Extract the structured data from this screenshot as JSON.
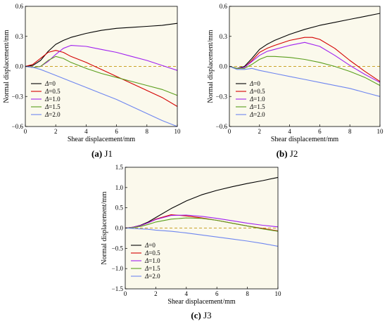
{
  "chart_data": [
    {
      "type": "line",
      "caption_letter": "(a)",
      "caption_text": "J1",
      "xlabel": "Shear displacement/mm",
      "ylabel": "Normal displacement/mm",
      "xlim": [
        0,
        10
      ],
      "ylim": [
        -0.6,
        0.6
      ],
      "xticks": [
        0,
        2,
        4,
        6,
        8,
        10
      ],
      "yticks": [
        -0.6,
        -0.3,
        0.0,
        0.3,
        0.6
      ],
      "ytick_labels": [
        "−0.6",
        "−0.3",
        "0.0",
        "0.3",
        "0.6"
      ],
      "reference_line_y": 0,
      "legend_position": "bottom-left",
      "series": [
        {
          "name": "Δ=0",
          "color": "#000000",
          "x": [
            0,
            0.5,
            1,
            1.5,
            2,
            2.5,
            3,
            4,
            5,
            6,
            7,
            8,
            9,
            10
          ],
          "y": [
            0,
            0.01,
            0.06,
            0.15,
            0.22,
            0.26,
            0.29,
            0.33,
            0.36,
            0.38,
            0.39,
            0.4,
            0.41,
            0.43
          ]
        },
        {
          "name": "Δ=0.5",
          "color": "#d40000",
          "x": [
            0,
            0.5,
            1,
            1.5,
            2,
            2.5,
            3,
            4,
            5,
            6,
            7,
            8,
            9,
            10
          ],
          "y": [
            0,
            0.02,
            0.08,
            0.14,
            0.16,
            0.14,
            0.1,
            0.04,
            -0.03,
            -0.1,
            -0.17,
            -0.24,
            -0.31,
            -0.4
          ]
        },
        {
          "name": "Δ=1.0",
          "color": "#a020f0",
          "x": [
            0,
            0.5,
            1,
            1.5,
            2,
            2.5,
            3,
            4,
            5,
            6,
            7,
            8,
            9,
            10
          ],
          "y": [
            0,
            -0.01,
            0.0,
            0.05,
            0.12,
            0.18,
            0.21,
            0.2,
            0.17,
            0.14,
            0.1,
            0.06,
            0.01,
            -0.04
          ]
        },
        {
          "name": "Δ=1.5",
          "color": "#5a9e1c",
          "x": [
            0,
            0.5,
            1,
            1.5,
            2,
            2.5,
            3,
            4,
            5,
            6,
            7,
            8,
            9,
            10
          ],
          "y": [
            0,
            -0.01,
            0.0,
            0.06,
            0.1,
            0.08,
            0.04,
            -0.02,
            -0.07,
            -0.11,
            -0.15,
            -0.19,
            -0.23,
            -0.29
          ]
        },
        {
          "name": "Δ=2.0",
          "color": "#6e86f0",
          "x": [
            0,
            0.5,
            1,
            1.5,
            2,
            3,
            4,
            5,
            6,
            7,
            8,
            9,
            10
          ],
          "y": [
            0,
            -0.01,
            -0.03,
            -0.06,
            -0.09,
            -0.15,
            -0.21,
            -0.27,
            -0.33,
            -0.4,
            -0.47,
            -0.54,
            -0.6
          ]
        }
      ]
    },
    {
      "type": "line",
      "caption_letter": "(b)",
      "caption_text": "J2",
      "xlabel": "Shear displacement/mm",
      "ylabel": "Normal displacement/mm",
      "xlim": [
        0,
        10
      ],
      "ylim": [
        -0.6,
        0.6
      ],
      "xticks": [
        0,
        2,
        4,
        6,
        8,
        10
      ],
      "yticks": [
        -0.6,
        -0.3,
        0.0,
        0.3,
        0.6
      ],
      "ytick_labels": [
        "−0.6",
        "−0.3",
        "0.0",
        "0.3",
        "0.6"
      ],
      "reference_line_y": 0,
      "legend_position": "bottom-left",
      "series": [
        {
          "name": "Δ=0",
          "color": "#000000",
          "x": [
            0,
            0.5,
            1,
            1.5,
            2,
            2.5,
            3,
            4,
            5,
            6,
            7,
            8,
            9,
            10
          ],
          "y": [
            0,
            -0.02,
            0.0,
            0.08,
            0.17,
            0.22,
            0.26,
            0.32,
            0.37,
            0.41,
            0.44,
            0.47,
            0.5,
            0.53
          ]
        },
        {
          "name": "Δ=0.5",
          "color": "#d40000",
          "x": [
            0,
            0.5,
            1,
            1.5,
            2,
            2.5,
            3,
            4,
            5,
            5.5,
            6,
            7,
            8,
            9,
            10
          ],
          "y": [
            0,
            -0.02,
            -0.01,
            0.06,
            0.14,
            0.18,
            0.21,
            0.26,
            0.29,
            0.29,
            0.27,
            0.18,
            0.06,
            -0.05,
            -0.15
          ]
        },
        {
          "name": "Δ=1.0",
          "color": "#a020f0",
          "x": [
            0,
            0.5,
            1,
            1.5,
            2,
            2.5,
            3,
            4,
            5,
            6,
            7,
            8,
            9,
            10
          ],
          "y": [
            0,
            -0.02,
            -0.01,
            0.05,
            0.11,
            0.15,
            0.17,
            0.21,
            0.24,
            0.2,
            0.11,
            0.01,
            -0.08,
            -0.16
          ]
        },
        {
          "name": "Δ=1.5",
          "color": "#5a9e1c",
          "x": [
            0,
            0.5,
            1,
            1.5,
            2,
            2.5,
            3,
            4,
            5,
            6,
            7,
            8,
            9,
            10
          ],
          "y": [
            0,
            -0.02,
            -0.02,
            0.02,
            0.07,
            0.1,
            0.1,
            0.09,
            0.07,
            0.04,
            0.0,
            -0.05,
            -0.11,
            -0.19
          ]
        },
        {
          "name": "Δ=2.0",
          "color": "#6e86f0",
          "x": [
            0,
            0.5,
            1,
            1.5,
            2,
            3,
            4,
            5,
            6,
            7,
            8,
            9,
            10
          ],
          "y": [
            0,
            -0.03,
            -0.03,
            -0.02,
            -0.04,
            -0.07,
            -0.1,
            -0.13,
            -0.16,
            -0.19,
            -0.22,
            -0.26,
            -0.3
          ]
        }
      ]
    },
    {
      "type": "line",
      "caption_letter": "(c)",
      "caption_text": "J3",
      "xlabel": "Shear displacement/mm",
      "ylabel": "Normal displacement/mm",
      "xlim": [
        0,
        10
      ],
      "ylim": [
        -1.5,
        1.5
      ],
      "xticks": [
        0,
        2,
        4,
        6,
        8,
        10
      ],
      "yticks": [
        -1.5,
        -1.0,
        -0.5,
        0.0,
        0.5,
        1.0,
        1.5
      ],
      "ytick_labels": [
        "−1.5",
        "−1.0",
        "−0.5",
        "0.0",
        "0.5",
        "1.0",
        "1.5"
      ],
      "reference_line_y": 0,
      "legend_position": "bottom-left",
      "series": [
        {
          "name": "Δ=0",
          "color": "#000000",
          "x": [
            0,
            0.5,
            1,
            1.5,
            2,
            3,
            4,
            5,
            6,
            7,
            8,
            9,
            10
          ],
          "y": [
            0,
            0.02,
            0.07,
            0.15,
            0.26,
            0.48,
            0.67,
            0.82,
            0.93,
            1.02,
            1.1,
            1.17,
            1.25
          ]
        },
        {
          "name": "Δ=0.5",
          "color": "#d40000",
          "x": [
            0,
            0.5,
            1,
            1.5,
            2,
            3,
            4,
            5,
            6,
            7,
            8,
            9,
            10
          ],
          "y": [
            0,
            0.02,
            0.06,
            0.13,
            0.22,
            0.33,
            0.3,
            0.25,
            0.19,
            0.12,
            0.05,
            -0.01,
            -0.07
          ]
        },
        {
          "name": "Δ=1.0",
          "color": "#a020f0",
          "x": [
            0,
            0.5,
            1,
            1.5,
            2,
            3,
            4,
            5,
            6,
            7,
            8,
            9,
            10
          ],
          "y": [
            0,
            0.02,
            0.06,
            0.13,
            0.21,
            0.31,
            0.32,
            0.29,
            0.24,
            0.18,
            0.12,
            0.07,
            0.03
          ]
        },
        {
          "name": "Δ=1.5",
          "color": "#5a9e1c",
          "x": [
            0,
            0.5,
            1,
            1.5,
            2,
            3,
            4,
            5,
            6,
            7,
            8,
            9,
            10
          ],
          "y": [
            0,
            0.01,
            0.04,
            0.09,
            0.15,
            0.22,
            0.25,
            0.24,
            0.19,
            0.12,
            0.05,
            -0.02,
            -0.08
          ]
        },
        {
          "name": "Δ=2.0",
          "color": "#6e86f0",
          "x": [
            0,
            0.5,
            1,
            1.5,
            2,
            3,
            4,
            5,
            6,
            7,
            8,
            9,
            10
          ],
          "y": [
            0,
            -0.01,
            -0.02,
            -0.03,
            -0.05,
            -0.08,
            -0.12,
            -0.17,
            -0.22,
            -0.27,
            -0.32,
            -0.38,
            -0.45
          ]
        }
      ]
    }
  ]
}
